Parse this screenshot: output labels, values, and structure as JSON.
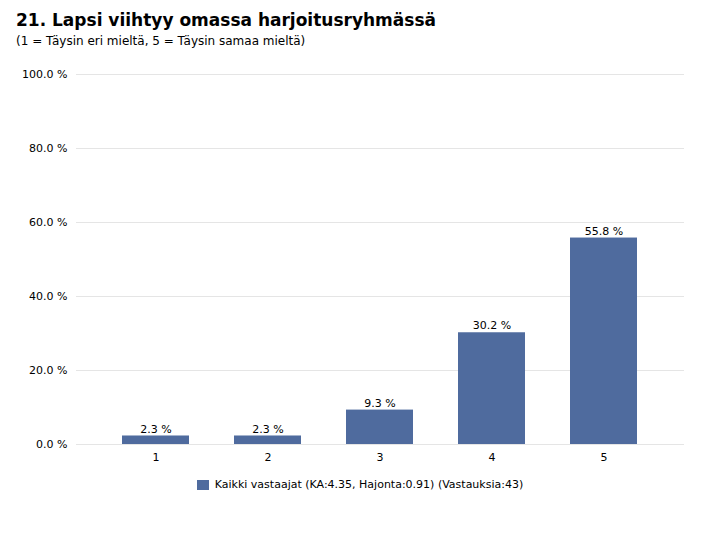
{
  "chart_data": {
    "type": "bar",
    "title": "21. Lapsi viihtyy omassa harjoitusryhmässä",
    "subtitle": "(1 = Täysin eri mieltä, 5 = Täysin samaa mieltä)",
    "categories": [
      "1",
      "2",
      "3",
      "4",
      "5"
    ],
    "series": [
      {
        "name": "Kaikki vastaajat (KA:4.35, Hajonta:0.91) (Vastauksia:43)",
        "color": "#4f6b9e",
        "values": [
          2.3,
          2.3,
          9.3,
          30.2,
          55.8
        ],
        "value_labels": [
          "2.3 %",
          "2.3 %",
          "9.3 %",
          "30.2 %",
          "55.8 %"
        ]
      }
    ],
    "ylim": [
      0,
      100
    ],
    "yticks": [
      {
        "value": 0,
        "label": "0.0 %"
      },
      {
        "value": 20,
        "label": "20.0 %"
      },
      {
        "value": 40,
        "label": "40.0 %"
      },
      {
        "value": 60,
        "label": "60.0 %"
      },
      {
        "value": 80,
        "label": "80.0 %"
      },
      {
        "value": 100,
        "label": "100.0 %"
      }
    ],
    "grid": true,
    "data_labels": true,
    "legend": "bottom"
  }
}
